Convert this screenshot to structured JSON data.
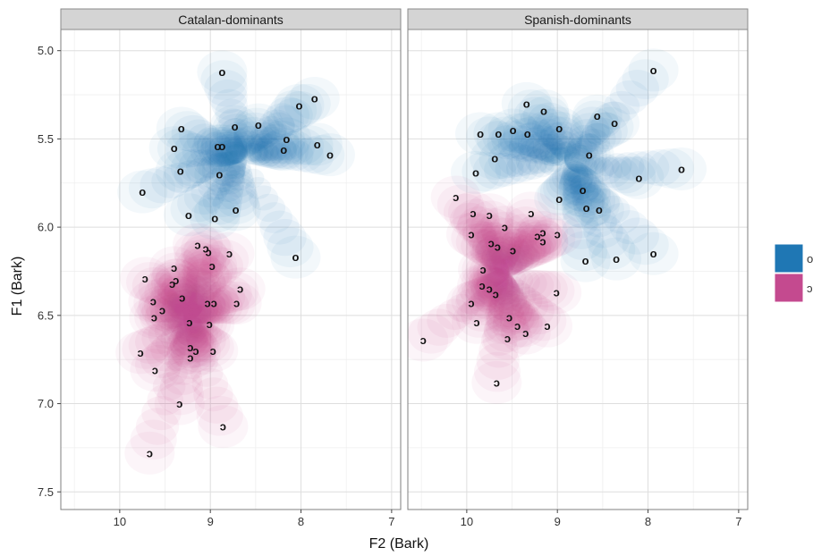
{
  "chart_data": {
    "type": "scatter",
    "title": "",
    "xlabel": "F2 (Bark)",
    "ylabel": "F1 (Bark)",
    "x_reversed": true,
    "y_reversed": true,
    "xlim": [
      10.65,
      6.9
    ],
    "ylim": [
      4.88,
      7.6
    ],
    "x_ticks": [
      10,
      9,
      8,
      7
    ],
    "y_ticks": [
      5.0,
      5.5,
      6.0,
      6.5,
      7.0,
      7.5
    ],
    "y_tick_labels": [
      "5.0",
      "5.5",
      "6.0",
      "6.5",
      "7.0",
      "7.5"
    ],
    "grid": true,
    "legend": {
      "position": "right",
      "entries": [
        {
          "label": "o",
          "color": "#1f77b4"
        },
        {
          "label": "ɔ",
          "color": "#c44a8f"
        }
      ]
    },
    "series": [
      {
        "label": "o",
        "color": "#1f77b4"
      },
      {
        "label": "ɔ",
        "color": "#c44a8f"
      }
    ],
    "panels": [
      {
        "strip": "Catalan-dominants",
        "o": [
          [
            8.87,
            5.12
          ],
          [
            7.85,
            5.27
          ],
          [
            8.02,
            5.31
          ],
          [
            9.32,
            5.44
          ],
          [
            8.73,
            5.43
          ],
          [
            8.47,
            5.42
          ],
          [
            9.4,
            5.55
          ],
          [
            8.87,
            5.54
          ],
          [
            8.92,
            5.54
          ],
          [
            8.16,
            5.5
          ],
          [
            8.19,
            5.56
          ],
          [
            7.82,
            5.53
          ],
          [
            7.68,
            5.59
          ],
          [
            9.33,
            5.68
          ],
          [
            8.9,
            5.7
          ],
          [
            9.75,
            5.8
          ],
          [
            8.72,
            5.9
          ],
          [
            9.24,
            5.93
          ],
          [
            8.95,
            5.95
          ],
          [
            8.06,
            6.17
          ]
        ],
        "c": [
          [
            9.14,
            6.1
          ],
          [
            9.05,
            6.12
          ],
          [
            9.02,
            6.14
          ],
          [
            8.79,
            6.15
          ],
          [
            9.4,
            6.23
          ],
          [
            8.98,
            6.22
          ],
          [
            9.38,
            6.3
          ],
          [
            9.42,
            6.32
          ],
          [
            9.72,
            6.29
          ],
          [
            8.67,
            6.35
          ],
          [
            9.31,
            6.4
          ],
          [
            9.63,
            6.42
          ],
          [
            9.03,
            6.43
          ],
          [
            8.96,
            6.43
          ],
          [
            8.71,
            6.43
          ],
          [
            9.53,
            6.47
          ],
          [
            9.62,
            6.51
          ],
          [
            9.23,
            6.54
          ],
          [
            9.01,
            6.55
          ],
          [
            9.22,
            6.68
          ],
          [
            9.16,
            6.7
          ],
          [
            8.97,
            6.7
          ],
          [
            9.77,
            6.71
          ],
          [
            9.22,
            6.74
          ],
          [
            9.61,
            6.81
          ],
          [
            9.34,
            7.0
          ],
          [
            8.86,
            7.13
          ],
          [
            9.67,
            7.28
          ]
        ]
      },
      {
        "strip": "Spanish-dominants",
        "o": [
          [
            7.94,
            5.11
          ],
          [
            9.34,
            5.3
          ],
          [
            9.15,
            5.34
          ],
          [
            8.56,
            5.37
          ],
          [
            9.49,
            5.45
          ],
          [
            9.65,
            5.47
          ],
          [
            9.33,
            5.47
          ],
          [
            9.85,
            5.47
          ],
          [
            8.98,
            5.44
          ],
          [
            8.37,
            5.41
          ],
          [
            8.65,
            5.59
          ],
          [
            9.69,
            5.61
          ],
          [
            8.1,
            5.72
          ],
          [
            7.63,
            5.67
          ],
          [
            9.9,
            5.69
          ],
          [
            8.72,
            5.79
          ],
          [
            8.98,
            5.84
          ],
          [
            8.68,
            5.89
          ],
          [
            8.54,
            5.9
          ],
          [
            8.69,
            6.19
          ],
          [
            8.35,
            6.18
          ],
          [
            7.94,
            6.15
          ]
        ],
        "c": [
          [
            10.12,
            5.83
          ],
          [
            9.93,
            5.92
          ],
          [
            9.75,
            5.93
          ],
          [
            9.29,
            5.92
          ],
          [
            9.58,
            6.0
          ],
          [
            9.22,
            6.05
          ],
          [
            9.0,
            6.04
          ],
          [
            9.95,
            6.04
          ],
          [
            9.73,
            6.09
          ],
          [
            9.66,
            6.11
          ],
          [
            9.16,
            6.08
          ],
          [
            9.16,
            6.03
          ],
          [
            9.49,
            6.13
          ],
          [
            9.82,
            6.24
          ],
          [
            9.83,
            6.33
          ],
          [
            9.75,
            6.35
          ],
          [
            9.68,
            6.38
          ],
          [
            9.01,
            6.37
          ],
          [
            9.95,
            6.43
          ],
          [
            9.89,
            6.54
          ],
          [
            9.53,
            6.51
          ],
          [
            9.44,
            6.56
          ],
          [
            9.35,
            6.6
          ],
          [
            9.55,
            6.63
          ],
          [
            9.11,
            6.56
          ],
          [
            10.48,
            6.64
          ],
          [
            9.67,
            6.88
          ]
        ]
      }
    ]
  }
}
